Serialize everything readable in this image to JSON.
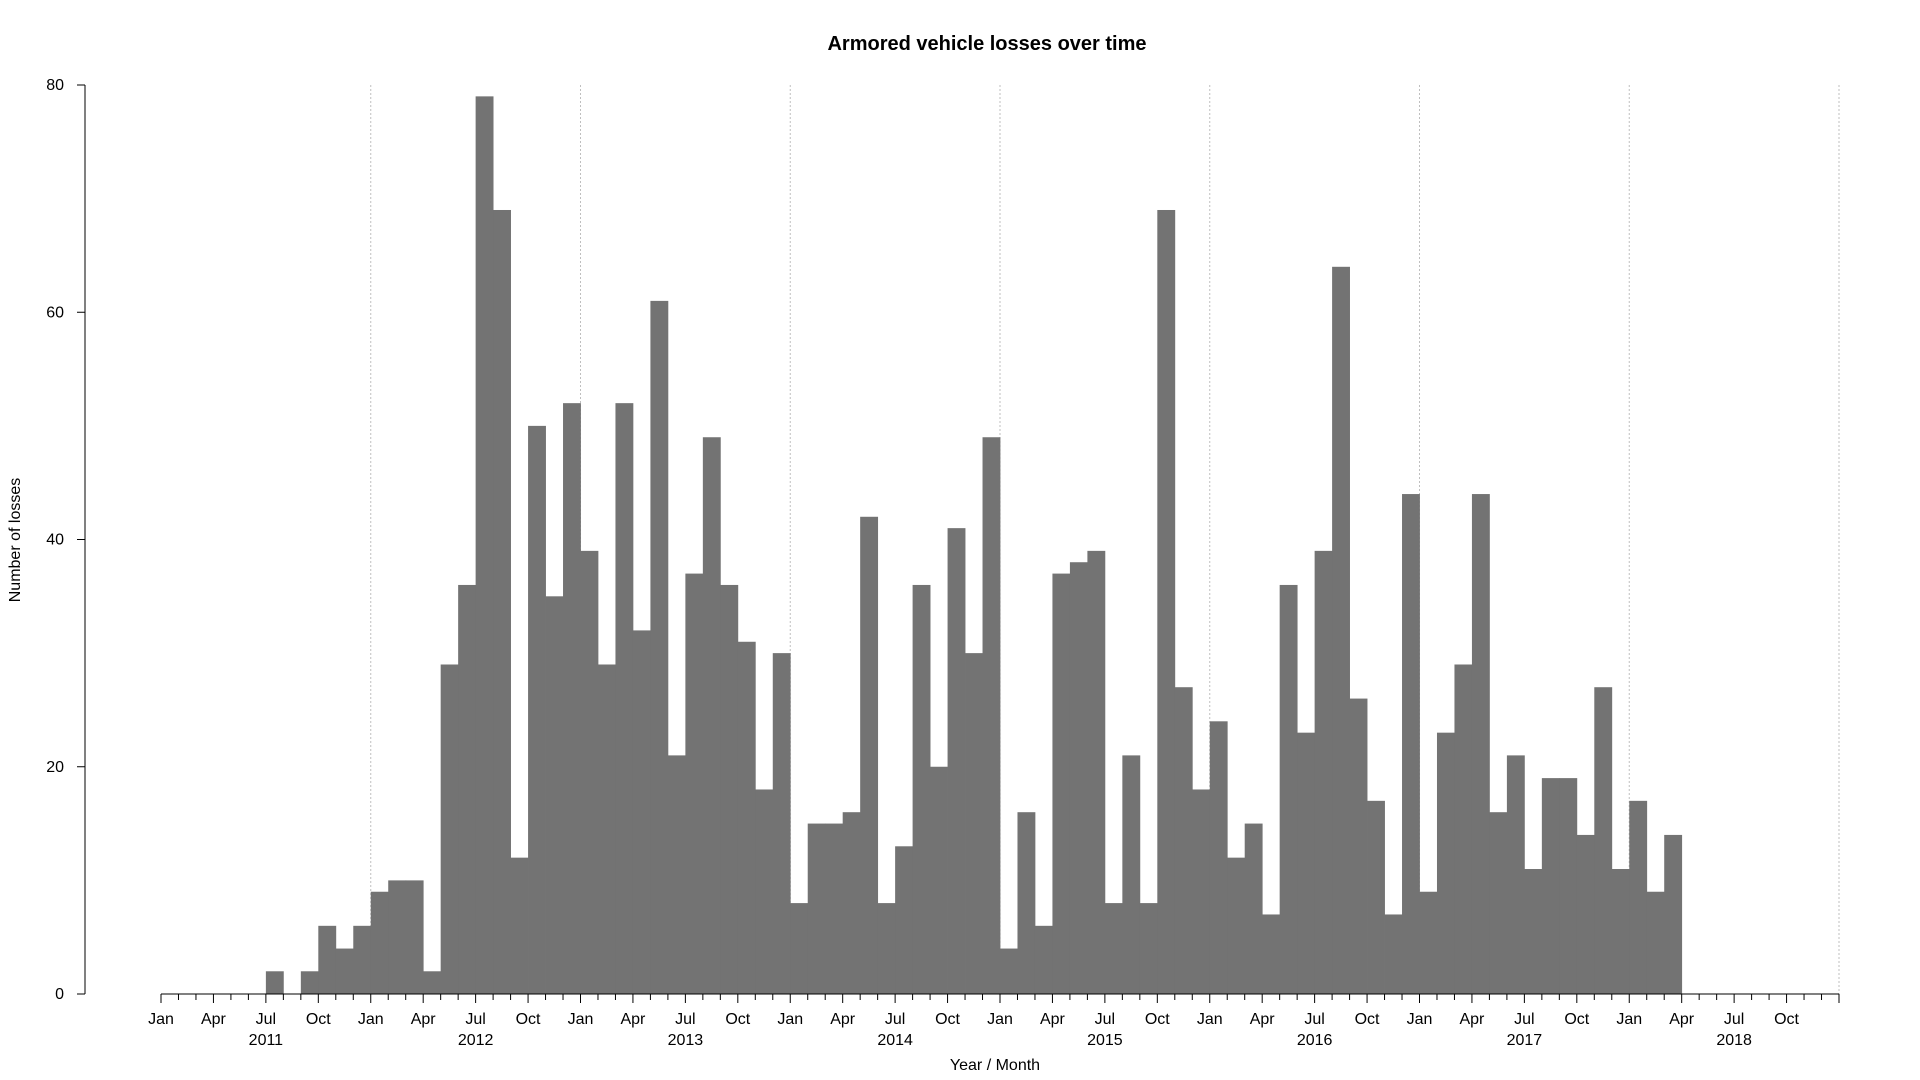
{
  "chart_data": {
    "type": "bar",
    "title": "Armored vehicle losses over time",
    "xlabel": "Year / Month",
    "ylabel": "Number of losses",
    "ylim": [
      0,
      80
    ],
    "yticks": [
      0,
      20,
      40,
      60,
      80
    ],
    "grid": "vertical dotted lines at year boundaries",
    "bar_color": "#737373",
    "grid_color": "#bfbfbf",
    "start_month": "2011-01",
    "month_tick_labels": [
      "Jan",
      "Apr",
      "Jul",
      "Oct"
    ],
    "years": [
      "2011",
      "2012",
      "2013",
      "2014",
      "2015",
      "2016",
      "2017",
      "2018"
    ],
    "categories": [
      "2011-01",
      "2011-02",
      "2011-03",
      "2011-04",
      "2011-05",
      "2011-06",
      "2011-07",
      "2011-08",
      "2011-09",
      "2011-10",
      "2011-11",
      "2011-12",
      "2012-01",
      "2012-02",
      "2012-03",
      "2012-04",
      "2012-05",
      "2012-06",
      "2012-07",
      "2012-08",
      "2012-09",
      "2012-10",
      "2012-11",
      "2012-12",
      "2013-01",
      "2013-02",
      "2013-03",
      "2013-04",
      "2013-05",
      "2013-06",
      "2013-07",
      "2013-08",
      "2013-09",
      "2013-10",
      "2013-11",
      "2013-12",
      "2014-01",
      "2014-02",
      "2014-03",
      "2014-04",
      "2014-05",
      "2014-06",
      "2014-07",
      "2014-08",
      "2014-09",
      "2014-10",
      "2014-11",
      "2014-12",
      "2015-01",
      "2015-02",
      "2015-03",
      "2015-04",
      "2015-05",
      "2015-06",
      "2015-07",
      "2015-08",
      "2015-09",
      "2015-10",
      "2015-11",
      "2015-12",
      "2016-01",
      "2016-02",
      "2016-03",
      "2016-04",
      "2016-05",
      "2016-06",
      "2016-07",
      "2016-08",
      "2016-09",
      "2016-10",
      "2016-11",
      "2016-12",
      "2017-01",
      "2017-02",
      "2017-03",
      "2017-04",
      "2017-05",
      "2017-06",
      "2017-07",
      "2017-08",
      "2017-09",
      "2017-10",
      "2017-11",
      "2017-12",
      "2018-01",
      "2018-02",
      "2018-03",
      "2018-04",
      "2018-05",
      "2018-06",
      "2018-07",
      "2018-08",
      "2018-09",
      "2018-10",
      "2018-11",
      "2018-12"
    ],
    "values": [
      0,
      0,
      0,
      0,
      0,
      0,
      2,
      0,
      2,
      6,
      4,
      6,
      9,
      10,
      10,
      2,
      29,
      36,
      79,
      69,
      12,
      50,
      35,
      52,
      39,
      29,
      52,
      32,
      61,
      21,
      37,
      49,
      36,
      31,
      18,
      30,
      8,
      15,
      15,
      16,
      42,
      8,
      13,
      36,
      20,
      41,
      30,
      49,
      4,
      16,
      6,
      37,
      38,
      39,
      8,
      21,
      8,
      69,
      27,
      18,
      24,
      12,
      15,
      7,
      36,
      23,
      39,
      64,
      26,
      17,
      7,
      44,
      9,
      23,
      29,
      44,
      16,
      21,
      11,
      19,
      19,
      14,
      27,
      11,
      17,
      9,
      14,
      0,
      0,
      0,
      0,
      0,
      0,
      0,
      0,
      0
    ]
  }
}
